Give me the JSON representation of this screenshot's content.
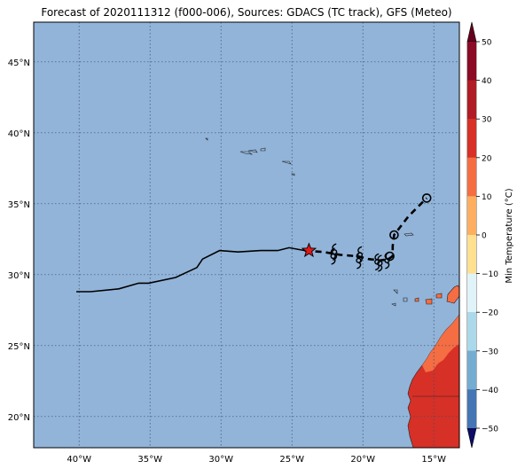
{
  "title": "Forecast of 2020111312 (f000-006), Sources: GDACS (TC track), GFS (Meteo)",
  "map": {
    "lon_range": [
      -43.2,
      -13.2
    ],
    "lat_range": [
      17.8,
      47.8
    ],
    "ocean_color": "#92b4d9",
    "grid_style": "dotted",
    "x_ticks": [
      {
        "value": -40,
        "label": "40°W"
      },
      {
        "value": -35,
        "label": "35°W"
      },
      {
        "value": -30,
        "label": "30°W"
      },
      {
        "value": -25,
        "label": "25°W"
      },
      {
        "value": -20,
        "label": "20°W"
      },
      {
        "value": -15,
        "label": "15°W"
      }
    ],
    "y_ticks": [
      {
        "value": 45,
        "label": "45°N"
      },
      {
        "value": 40,
        "label": "40°N"
      },
      {
        "value": 35,
        "label": "35°N"
      },
      {
        "value": 30,
        "label": "30°N"
      },
      {
        "value": 25,
        "label": "25°N"
      },
      {
        "value": 20,
        "label": "20°N"
      }
    ]
  },
  "past_track": [
    [
      -40.2,
      28.8
    ],
    [
      -39.2,
      28.8
    ],
    [
      -37.2,
      29.0
    ],
    [
      -35.8,
      29.4
    ],
    [
      -35.1,
      29.4
    ],
    [
      -33.2,
      29.8
    ],
    [
      -31.7,
      30.5
    ],
    [
      -31.3,
      31.1
    ],
    [
      -30.1,
      31.7
    ],
    [
      -28.8,
      31.6
    ],
    [
      -27.2,
      31.7
    ],
    [
      -26.0,
      31.7
    ],
    [
      -25.2,
      31.9
    ],
    [
      -24.1,
      31.7
    ]
  ],
  "forecast_track": [
    [
      -24.1,
      31.7
    ],
    [
      -22.8,
      31.6
    ],
    [
      -21.6,
      31.4
    ],
    [
      -20.4,
      31.3
    ],
    [
      -19.6,
      31.1
    ],
    [
      -18.8,
      31.0
    ],
    [
      -18.2,
      31.1
    ],
    [
      -17.9,
      31.3
    ],
    [
      -17.9,
      32.0
    ],
    [
      -17.8,
      32.8
    ],
    [
      -16.8,
      34.1
    ],
    [
      -15.5,
      35.4
    ]
  ],
  "current_position": {
    "lon": -23.8,
    "lat": 31.7,
    "marker": "red-star"
  },
  "storm_symbols": [
    {
      "lon": -22.0,
      "lat": 31.6
    },
    {
      "lon": -22.1,
      "lat": 31.3
    },
    {
      "lon": -20.2,
      "lat": 31.4
    },
    {
      "lon": -20.3,
      "lat": 31.0
    },
    {
      "lon": -19.0,
      "lat": 30.9
    },
    {
      "lon": -18.8,
      "lat": 30.8
    },
    {
      "lon": -18.3,
      "lat": 31.0
    }
  ],
  "circle_markers": [
    {
      "lon": -18.1,
      "lat": 31.3
    },
    {
      "lon": -17.8,
      "lat": 32.8
    },
    {
      "lon": -15.5,
      "lat": 35.4
    }
  ],
  "colorbar": {
    "label": "Min Temperature (°C)",
    "range": [
      -50,
      50
    ],
    "ticks": [
      "50",
      "40",
      "30",
      "20",
      "10",
      "0",
      "−10",
      "−20",
      "−30",
      "−40",
      "−50"
    ],
    "colors_top_to_bottom": [
      "#8b0a25",
      "#b01c25",
      "#d73027",
      "#f46d43",
      "#fdae61",
      "#fee090",
      "#ffffbf",
      "#e0f3f8",
      "#abd9e9",
      "#74add1",
      "#4575b4",
      "#313695",
      "#1f2780"
    ]
  },
  "land": {
    "land_high": "#d73027",
    "land_mid": "#f46d43"
  }
}
